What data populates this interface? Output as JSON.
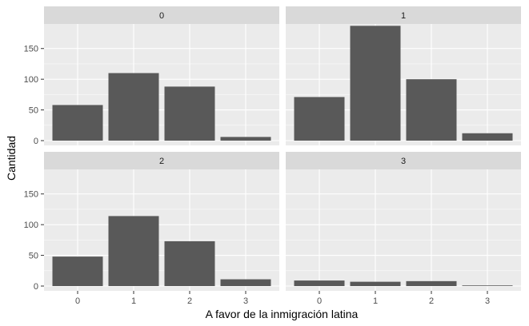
{
  "chart_data": {
    "type": "bar",
    "xlabel": "A favor de la inmigración latina",
    "ylabel": "Cantidad",
    "categories": [
      "0",
      "1",
      "2",
      "3"
    ],
    "ylim": [
      0,
      190
    ],
    "yticks": [
      0,
      50,
      100,
      150
    ],
    "panels": [
      {
        "label": "0",
        "values": [
          58,
          110,
          88,
          6
        ]
      },
      {
        "label": "1",
        "values": [
          71,
          187,
          100,
          12
        ]
      },
      {
        "label": "2",
        "values": [
          48,
          114,
          73,
          11
        ]
      },
      {
        "label": "3",
        "values": [
          9,
          7,
          8,
          1
        ]
      }
    ]
  },
  "colors": {
    "panel_bg": "#ebebeb",
    "strip_bg": "#d9d9d9",
    "grid_major": "#ffffff",
    "bar": "#595959",
    "tick": "#4d4d4d"
  }
}
